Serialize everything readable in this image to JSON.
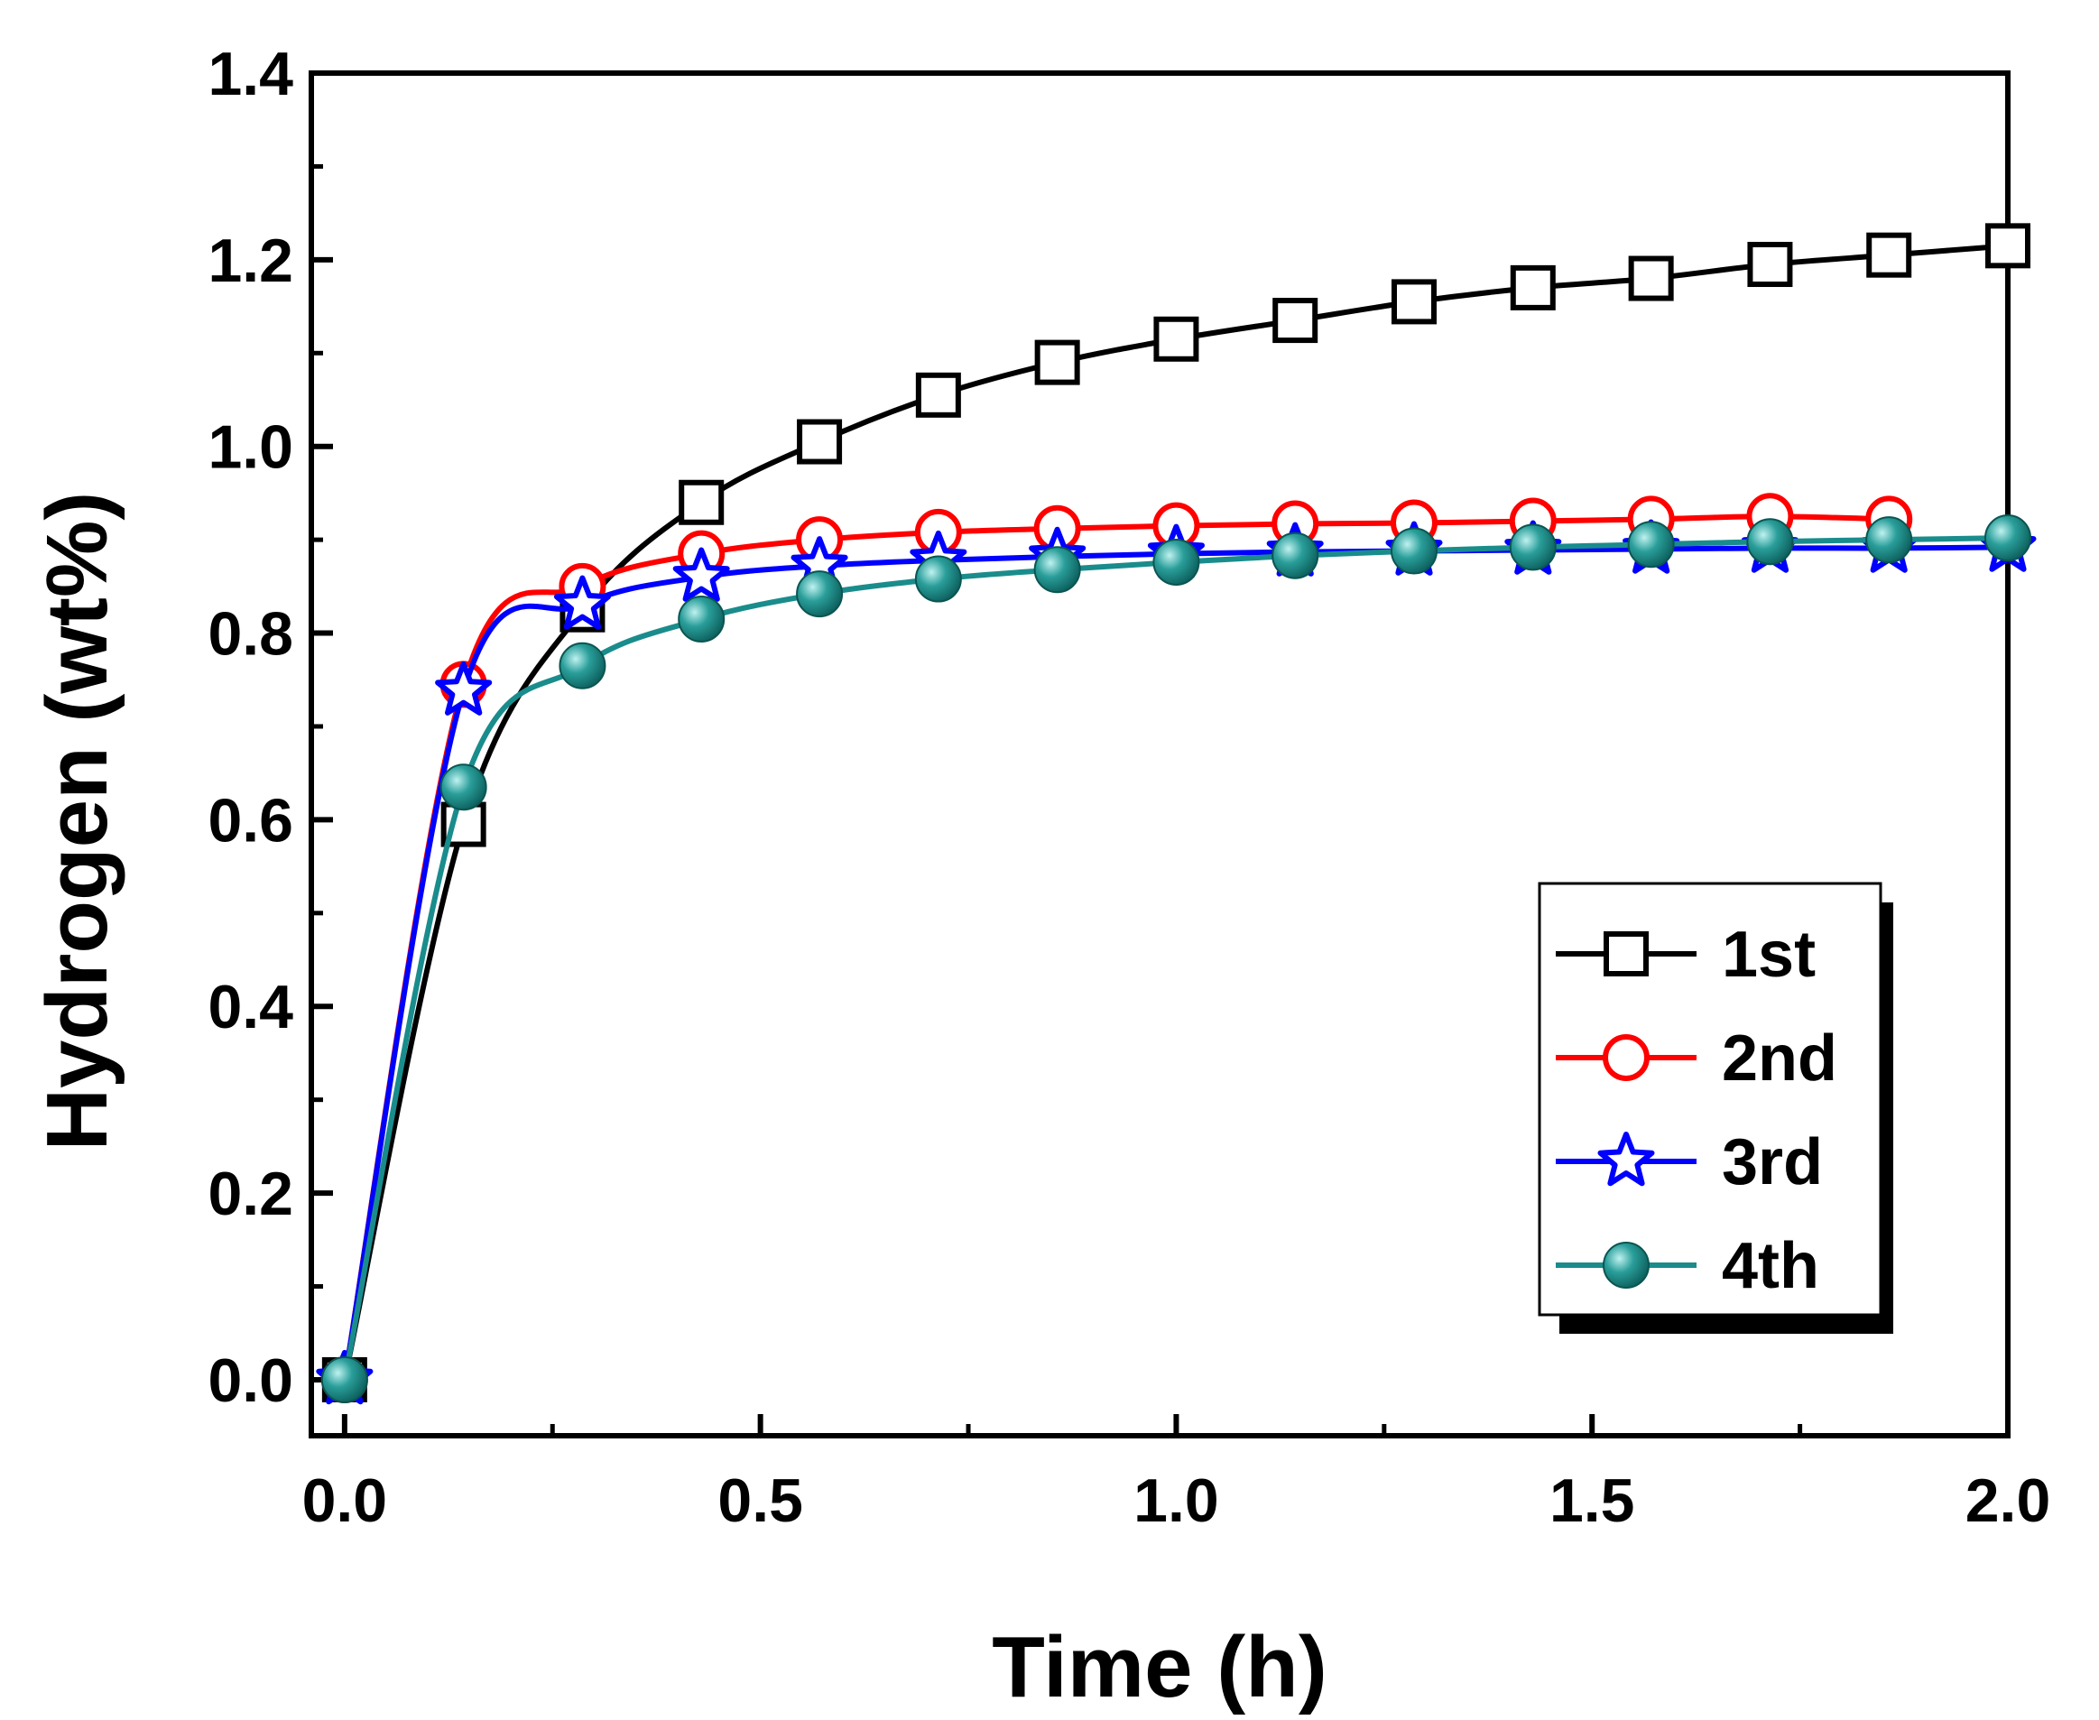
{
  "chart_data": {
    "type": "line",
    "title": "",
    "xlabel": "Time (h)",
    "ylabel": "Hydrogen (wt%)",
    "xlim": [
      -0.04,
      2.0
    ],
    "ylim": [
      -0.06,
      1.4
    ],
    "x_ticks": [
      0.0,
      0.5,
      1.0,
      1.5,
      2.0
    ],
    "x_tick_labels": [
      "0.0",
      "0.5",
      "1.0",
      "1.5",
      "2.0"
    ],
    "y_ticks": [
      0.0,
      0.2,
      0.4,
      0.6,
      0.8,
      1.0,
      1.2,
      1.4
    ],
    "y_tick_labels": [
      "0.0",
      "0.2",
      "0.4",
      "0.6",
      "0.8",
      "1.0",
      "1.2",
      "1.4"
    ],
    "grid": false,
    "legend_position": "bottom-right",
    "series": [
      {
        "name": "1st",
        "color": "#000000",
        "marker": "open-square",
        "x": [
          0,
          0.143,
          0.286,
          0.429,
          0.571,
          0.714,
          0.857,
          1.0,
          1.143,
          1.286,
          1.429,
          1.571,
          1.714,
          1.857,
          2.0
        ],
        "y": [
          0,
          0.595,
          0.825,
          0.94,
          1.005,
          1.055,
          1.09,
          1.115,
          1.135,
          1.155,
          1.17,
          1.18,
          1.195,
          1.205,
          1.215
        ]
      },
      {
        "name": "2nd",
        "color": "#ff0000",
        "marker": "open-circle",
        "x": [
          0,
          0.143,
          0.286,
          0.429,
          0.571,
          0.714,
          0.857,
          1.0,
          1.143,
          1.286,
          1.429,
          1.571,
          1.714,
          1.857
        ],
        "y": [
          0,
          0.745,
          0.85,
          0.885,
          0.9,
          0.908,
          0.912,
          0.915,
          0.917,
          0.918,
          0.92,
          0.922,
          0.925,
          0.922
        ]
      },
      {
        "name": "3rd",
        "color": "#0000ff",
        "marker": "open-star",
        "x": [
          0,
          0.143,
          0.286,
          0.429,
          0.571,
          0.714,
          0.857,
          1.0,
          1.143,
          1.286,
          1.429,
          1.571,
          1.714,
          1.857,
          2.0
        ],
        "y": [
          0,
          0.738,
          0.83,
          0.86,
          0.872,
          0.878,
          0.882,
          0.885,
          0.887,
          0.888,
          0.889,
          0.89,
          0.891,
          0.891,
          0.892
        ]
      },
      {
        "name": "4th",
        "color": "#1a8c8c",
        "marker": "filled-circle",
        "x": [
          0,
          0.143,
          0.286,
          0.429,
          0.571,
          0.714,
          0.857,
          1.0,
          1.143,
          1.286,
          1.429,
          1.571,
          1.714,
          1.857,
          2.0
        ],
        "y": [
          0,
          0.635,
          0.765,
          0.815,
          0.842,
          0.858,
          0.868,
          0.876,
          0.883,
          0.888,
          0.892,
          0.895,
          0.898,
          0.9,
          0.902
        ]
      }
    ]
  }
}
